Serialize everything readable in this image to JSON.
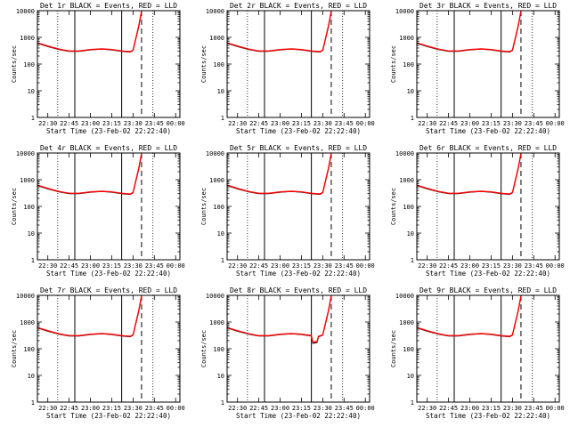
{
  "figure": {
    "x_start_time": "23-Feb-02 22:22:40",
    "colors": {
      "events": "#000000",
      "lld": "#ff0000",
      "background": "#ffffff"
    }
  },
  "chart_data": [
    {
      "type": "line",
      "title": "Det 1r BLACK = Events, RED = LLD",
      "xlabel": "Start Time (23-Feb-02 22:22:40)",
      "ylabel": "Counts/sec",
      "xlim": [
        "22:22:40",
        "00:03:00"
      ],
      "ylim": [
        1,
        10000
      ],
      "yscale": "log",
      "xticks": [
        "22:30",
        "22:45",
        "23:00",
        "23:15",
        "23:30",
        "23:45",
        "00:00"
      ],
      "yticks": [
        "1",
        "10",
        "100",
        "1000",
        "10000"
      ],
      "solid_vlines": [
        "22:49",
        "23:22"
      ],
      "dotted_vlines": [
        "22:37",
        "23:44"
      ],
      "dashed_vlines": [
        "23:36"
      ],
      "series": [
        {
          "color": "#000000",
          "x": [
            "22:22:40",
            "22:30",
            "22:38",
            "22:45",
            "22:52",
            "23:00",
            "23:08",
            "23:15",
            "23:22",
            "23:28",
            "23:30",
            "23:34",
            "23:36"
          ],
          "y": [
            600,
            450,
            350,
            300,
            300,
            340,
            360,
            340,
            300,
            280,
            320,
            2500,
            9000
          ]
        },
        {
          "color": "#ff0000",
          "x": [
            "22:22:40",
            "22:30",
            "22:38",
            "22:45",
            "22:52",
            "23:00",
            "23:08",
            "23:15",
            "23:22",
            "23:28",
            "23:30",
            "23:34",
            "23:36"
          ],
          "y": [
            620,
            470,
            360,
            310,
            310,
            350,
            370,
            350,
            310,
            290,
            330,
            2700,
            9500
          ]
        }
      ]
    },
    {
      "type": "line",
      "title": "Det 2r BLACK = Events, RED = LLD",
      "xlabel": "Start Time (23-Feb-02 22:22:40)",
      "ylabel": "Counts/sec",
      "xlim": [
        "22:22:40",
        "00:03:00"
      ],
      "ylim": [
        1,
        10000
      ],
      "yscale": "log",
      "xticks": [
        "22:30",
        "22:45",
        "23:00",
        "23:15",
        "23:30",
        "23:45",
        "00:00"
      ],
      "yticks": [
        "1",
        "10",
        "100",
        "1000",
        "10000"
      ],
      "solid_vlines": [
        "22:49",
        "23:22"
      ],
      "dotted_vlines": [
        "22:37",
        "23:44"
      ],
      "dashed_vlines": [
        "23:36"
      ],
      "series": [
        {
          "color": "#000000",
          "x": [
            "22:22:40",
            "22:30",
            "22:38",
            "22:45",
            "22:52",
            "23:00",
            "23:08",
            "23:15",
            "23:22",
            "23:28",
            "23:30",
            "23:34",
            "23:36"
          ],
          "y": [
            600,
            450,
            350,
            300,
            300,
            340,
            360,
            340,
            300,
            280,
            320,
            2500,
            9000
          ]
        },
        {
          "color": "#ff0000",
          "x": [
            "22:22:40",
            "22:30",
            "22:38",
            "22:45",
            "22:52",
            "23:00",
            "23:08",
            "23:15",
            "23:22",
            "23:28",
            "23:30",
            "23:34",
            "23:36"
          ],
          "y": [
            620,
            470,
            360,
            310,
            310,
            350,
            370,
            350,
            310,
            290,
            330,
            2700,
            9500
          ]
        }
      ]
    },
    {
      "type": "line",
      "title": "Det 3r BLACK = Events, RED = LLD",
      "xlabel": "Start Time (23-Feb-02 22:22:40)",
      "ylabel": "Counts/sec",
      "xlim": [
        "22:22:40",
        "00:03:00"
      ],
      "ylim": [
        1,
        10000
      ],
      "yscale": "log",
      "xticks": [
        "22:30",
        "22:45",
        "23:00",
        "23:15",
        "23:30",
        "23:45",
        "00:00"
      ],
      "yticks": [
        "1",
        "10",
        "100",
        "1000",
        "10000"
      ],
      "solid_vlines": [
        "22:49",
        "23:22"
      ],
      "dotted_vlines": [
        "22:37",
        "23:44"
      ],
      "dashed_vlines": [
        "23:36"
      ],
      "series": [
        {
          "color": "#000000",
          "x": [
            "22:22:40",
            "22:30",
            "22:38",
            "22:45",
            "22:52",
            "23:00",
            "23:08",
            "23:15",
            "23:22",
            "23:28",
            "23:30",
            "23:34",
            "23:36"
          ],
          "y": [
            600,
            450,
            350,
            300,
            300,
            340,
            360,
            340,
            300,
            280,
            320,
            2500,
            9000
          ]
        },
        {
          "color": "#ff0000",
          "x": [
            "22:22:40",
            "22:30",
            "22:38",
            "22:45",
            "22:52",
            "23:00",
            "23:08",
            "23:15",
            "23:22",
            "23:28",
            "23:30",
            "23:34",
            "23:36"
          ],
          "y": [
            620,
            470,
            360,
            310,
            310,
            350,
            370,
            350,
            310,
            290,
            330,
            2700,
            9500
          ]
        }
      ]
    },
    {
      "type": "line",
      "title": "Det 4r BLACK = Events, RED = LLD",
      "xlabel": "Start Time (23-Feb-02 22:22:40)",
      "ylabel": "Counts/sec",
      "xlim": [
        "22:22:40",
        "00:03:00"
      ],
      "ylim": [
        1,
        10000
      ],
      "yscale": "log",
      "xticks": [
        "22:30",
        "22:45",
        "23:00",
        "23:15",
        "23:30",
        "23:45",
        "00:00"
      ],
      "yticks": [
        "1",
        "10",
        "100",
        "1000",
        "10000"
      ],
      "solid_vlines": [
        "22:49",
        "23:22"
      ],
      "dotted_vlines": [
        "22:37",
        "23:44"
      ],
      "dashed_vlines": [
        "23:36"
      ],
      "series": [
        {
          "color": "#000000",
          "x": [
            "22:22:40",
            "22:30",
            "22:38",
            "22:45",
            "22:52",
            "23:00",
            "23:08",
            "23:15",
            "23:22",
            "23:28",
            "23:30",
            "23:34",
            "23:36"
          ],
          "y": [
            600,
            450,
            350,
            300,
            300,
            340,
            360,
            340,
            300,
            280,
            320,
            2500,
            9000
          ]
        },
        {
          "color": "#ff0000",
          "x": [
            "22:22:40",
            "22:30",
            "22:38",
            "22:45",
            "22:52",
            "23:00",
            "23:08",
            "23:15",
            "23:22",
            "23:28",
            "23:30",
            "23:34",
            "23:36"
          ],
          "y": [
            620,
            470,
            360,
            310,
            310,
            350,
            370,
            350,
            310,
            290,
            330,
            2700,
            9500
          ]
        }
      ]
    },
    {
      "type": "line",
      "title": "Det 5r BLACK = Events, RED = LLD",
      "xlabel": "Start Time (23-Feb-02 22:22:40)",
      "ylabel": "Counts/sec",
      "xlim": [
        "22:22:40",
        "00:03:00"
      ],
      "ylim": [
        1,
        10000
      ],
      "yscale": "log",
      "xticks": [
        "22:30",
        "22:45",
        "23:00",
        "23:15",
        "23:30",
        "23:45",
        "00:00"
      ],
      "yticks": [
        "1",
        "10",
        "100",
        "1000",
        "10000"
      ],
      "solid_vlines": [
        "22:49",
        "23:22"
      ],
      "dotted_vlines": [
        "22:37",
        "23:44"
      ],
      "dashed_vlines": [
        "23:36"
      ],
      "series": [
        {
          "color": "#000000",
          "x": [
            "22:22:40",
            "22:30",
            "22:38",
            "22:45",
            "22:52",
            "23:00",
            "23:08",
            "23:15",
            "23:22",
            "23:28",
            "23:30",
            "23:34",
            "23:36"
          ],
          "y": [
            600,
            450,
            350,
            300,
            300,
            340,
            360,
            340,
            300,
            280,
            320,
            2500,
            9000
          ]
        },
        {
          "color": "#ff0000",
          "x": [
            "22:22:40",
            "22:30",
            "22:38",
            "22:45",
            "22:52",
            "23:00",
            "23:08",
            "23:15",
            "23:22",
            "23:28",
            "23:30",
            "23:34",
            "23:36"
          ],
          "y": [
            620,
            470,
            360,
            310,
            310,
            350,
            370,
            350,
            310,
            290,
            330,
            2700,
            9500
          ]
        }
      ]
    },
    {
      "type": "line",
      "title": "Det 6r BLACK = Events, RED = LLD",
      "xlabel": "Start Time (23-Feb-02 22:22:40)",
      "ylabel": "Counts/sec",
      "xlim": [
        "22:22:40",
        "00:03:00"
      ],
      "ylim": [
        1,
        10000
      ],
      "yscale": "log",
      "xticks": [
        "22:30",
        "22:45",
        "23:00",
        "23:15",
        "23:30",
        "23:45",
        "00:00"
      ],
      "yticks": [
        "1",
        "10",
        "100",
        "1000",
        "10000"
      ],
      "solid_vlines": [
        "22:49",
        "23:22"
      ],
      "dotted_vlines": [
        "22:37",
        "23:44"
      ],
      "dashed_vlines": [
        "23:36"
      ],
      "series": [
        {
          "color": "#000000",
          "x": [
            "22:22:40",
            "22:30",
            "22:38",
            "22:45",
            "22:52",
            "23:00",
            "23:08",
            "23:15",
            "23:22",
            "23:28",
            "23:30",
            "23:34",
            "23:36"
          ],
          "y": [
            600,
            450,
            350,
            300,
            300,
            340,
            360,
            340,
            300,
            280,
            320,
            2500,
            9000
          ]
        },
        {
          "color": "#ff0000",
          "x": [
            "22:22:40",
            "22:30",
            "22:38",
            "22:45",
            "22:52",
            "23:00",
            "23:08",
            "23:15",
            "23:22",
            "23:28",
            "23:30",
            "23:34",
            "23:36"
          ],
          "y": [
            620,
            470,
            360,
            310,
            310,
            350,
            370,
            350,
            310,
            290,
            330,
            2700,
            9500
          ]
        }
      ]
    },
    {
      "type": "line",
      "title": "Det 7r BLACK = Events, RED = LLD",
      "xlabel": "Start Time (23-Feb-02 22:22:40)",
      "ylabel": "Counts/sec",
      "xlim": [
        "22:22:40",
        "00:03:00"
      ],
      "ylim": [
        1,
        10000
      ],
      "yscale": "log",
      "xticks": [
        "22:30",
        "22:45",
        "23:00",
        "23:15",
        "23:30",
        "23:45",
        "00:00"
      ],
      "yticks": [
        "1",
        "10",
        "100",
        "1000",
        "10000"
      ],
      "solid_vlines": [
        "22:49",
        "23:22"
      ],
      "dotted_vlines": [
        "22:37",
        "23:44"
      ],
      "dashed_vlines": [
        "23:36"
      ],
      "series": [
        {
          "color": "#000000",
          "x": [
            "22:22:40",
            "22:30",
            "22:38",
            "22:45",
            "22:52",
            "23:00",
            "23:08",
            "23:15",
            "23:22",
            "23:28",
            "23:30",
            "23:34",
            "23:36"
          ],
          "y": [
            600,
            450,
            350,
            300,
            300,
            340,
            360,
            340,
            300,
            280,
            320,
            2500,
            9000
          ]
        },
        {
          "color": "#ff0000",
          "x": [
            "22:22:40",
            "22:30",
            "22:38",
            "22:45",
            "22:52",
            "23:00",
            "23:08",
            "23:15",
            "23:22",
            "23:28",
            "23:30",
            "23:34",
            "23:36"
          ],
          "y": [
            620,
            470,
            360,
            310,
            310,
            350,
            370,
            350,
            310,
            290,
            330,
            2700,
            9500
          ]
        }
      ]
    },
    {
      "type": "line",
      "title": "Det 8r BLACK = Events, RED = LLD",
      "xlabel": "Start Time (23-Feb-02 22:22:40)",
      "ylabel": "Counts/sec",
      "xlim": [
        "22:22:40",
        "00:03:00"
      ],
      "ylim": [
        1,
        10000
      ],
      "yscale": "log",
      "xticks": [
        "22:30",
        "22:45",
        "23:00",
        "23:15",
        "23:30",
        "23:45",
        "00:00"
      ],
      "yticks": [
        "1",
        "10",
        "100",
        "1000",
        "10000"
      ],
      "solid_vlines": [
        "22:49",
        "23:22"
      ],
      "dotted_vlines": [
        "22:37",
        "23:44"
      ],
      "dashed_vlines": [
        "23:36"
      ],
      "series": [
        {
          "color": "#000000",
          "x": [
            "22:22:40",
            "22:30",
            "22:38",
            "22:45",
            "22:52",
            "23:00",
            "23:08",
            "23:15",
            "23:22",
            "23:23",
            "23:26",
            "23:27",
            "23:30",
            "23:34",
            "23:36"
          ],
          "y": [
            600,
            450,
            350,
            300,
            300,
            340,
            360,
            340,
            300,
            160,
            170,
            280,
            320,
            2500,
            9000
          ]
        },
        {
          "color": "#ff0000",
          "x": [
            "22:22:40",
            "22:30",
            "22:38",
            "22:45",
            "22:52",
            "23:00",
            "23:08",
            "23:15",
            "23:22",
            "23:23",
            "23:26",
            "23:27",
            "23:30",
            "23:34",
            "23:36"
          ],
          "y": [
            620,
            470,
            360,
            310,
            310,
            350,
            370,
            350,
            310,
            175,
            185,
            290,
            330,
            2700,
            9500
          ]
        }
      ]
    },
    {
      "type": "line",
      "title": "Det 9r BLACK = Events, RED = LLD",
      "xlabel": "Start Time (23-Feb-02 22:22:40)",
      "ylabel": "Counts/sec",
      "xlim": [
        "22:22:40",
        "00:03:00"
      ],
      "ylim": [
        1,
        10000
      ],
      "yscale": "log",
      "xticks": [
        "22:30",
        "22:45",
        "23:00",
        "23:15",
        "23:30",
        "23:45",
        "00:00"
      ],
      "yticks": [
        "1",
        "10",
        "100",
        "1000",
        "10000"
      ],
      "solid_vlines": [
        "22:49",
        "23:22"
      ],
      "dotted_vlines": [
        "22:37",
        "23:44"
      ],
      "dashed_vlines": [
        "23:36"
      ],
      "series": [
        {
          "color": "#000000",
          "x": [
            "22:22:40",
            "22:30",
            "22:38",
            "22:45",
            "22:52",
            "23:00",
            "23:08",
            "23:15",
            "23:22",
            "23:28",
            "23:30",
            "23:34",
            "23:36"
          ],
          "y": [
            600,
            450,
            350,
            300,
            300,
            340,
            360,
            340,
            300,
            280,
            320,
            2500,
            9000
          ]
        },
        {
          "color": "#ff0000",
          "x": [
            "22:22:40",
            "22:30",
            "22:38",
            "22:45",
            "22:52",
            "23:00",
            "23:08",
            "23:15",
            "23:22",
            "23:28",
            "23:30",
            "23:34",
            "23:36"
          ],
          "y": [
            620,
            470,
            360,
            310,
            310,
            350,
            370,
            350,
            310,
            290,
            330,
            2700,
            9500
          ]
        }
      ]
    }
  ]
}
